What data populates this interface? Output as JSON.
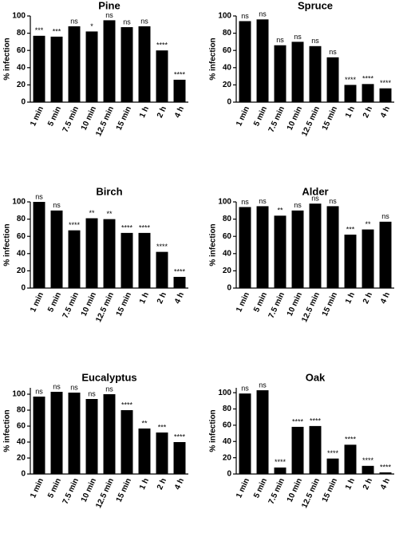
{
  "chart_data": [
    {
      "type": "bar",
      "title": "Pine",
      "ylabel": "% infection",
      "color": "#000000",
      "categories": [
        "1 min",
        "5 min",
        "7.5 min",
        "10 min",
        "12.5 min",
        "15 min",
        "1 h",
        "2 h",
        "4 h"
      ],
      "values": [
        77,
        76,
        88,
        82,
        95,
        87,
        88,
        60,
        26
      ],
      "annotations": [
        "***",
        "***",
        "ns",
        "*",
        "ns",
        "ns",
        "ns",
        "****",
        "****"
      ],
      "ylim": [
        0,
        100
      ],
      "yticks": [
        0,
        20,
        40,
        60,
        80,
        100
      ]
    },
    {
      "type": "bar",
      "title": "Spruce",
      "ylabel": "% infection",
      "color": "#000000",
      "categories": [
        "1 min",
        "5 min",
        "7.5 min",
        "10 min",
        "12.5 min",
        "15 min",
        "1 h",
        "2 h",
        "4 h"
      ],
      "values": [
        94,
        96,
        66,
        70,
        65,
        52,
        20,
        21,
        16
      ],
      "annotations": [
        "ns",
        "ns",
        "ns",
        "ns",
        "ns",
        "ns",
        "****",
        "****",
        "****"
      ],
      "ylim": [
        0,
        100
      ],
      "yticks": [
        0,
        20,
        40,
        60,
        80,
        100
      ]
    },
    {
      "type": "bar",
      "title": "Birch",
      "ylabel": "% infection",
      "color": "#000000",
      "categories": [
        "1 min",
        "5 min",
        "7.5 min",
        "10 min",
        "12.5 min",
        "15 min",
        "1 h",
        "2 h",
        "4 h"
      ],
      "values": [
        100,
        90,
        67,
        81,
        80,
        64,
        64,
        42,
        13
      ],
      "annotations": [
        "ns",
        "ns",
        "****",
        "**",
        "**",
        "****",
        "****",
        "****",
        "****"
      ],
      "ylim": [
        0,
        100
      ],
      "yticks": [
        0,
        20,
        40,
        60,
        80,
        100
      ]
    },
    {
      "type": "bar",
      "title": "Alder",
      "ylabel": "% infection",
      "color": "#000000",
      "categories": [
        "1 min",
        "5 min",
        "7.5 min",
        "10 min",
        "12.5 min",
        "15 min",
        "1 h",
        "2 h",
        "4 h"
      ],
      "values": [
        94,
        95,
        84,
        90,
        98,
        95,
        62,
        68,
        77
      ],
      "annotations": [
        "ns",
        "ns",
        "**",
        "ns",
        "ns",
        "ns",
        "***",
        "**",
        "ns"
      ],
      "ylim": [
        0,
        100
      ],
      "yticks": [
        0,
        20,
        40,
        60,
        80,
        100
      ]
    },
    {
      "type": "bar",
      "title": "Eucalyptus",
      "ylabel": "% infection",
      "color": "#000000",
      "categories": [
        "1 min",
        "5 min",
        "7.5 min",
        "10 min",
        "12.5 min",
        "15 min",
        "1 h",
        "2 h",
        "4 h"
      ],
      "values": [
        97,
        103,
        102,
        94,
        100,
        80,
        57,
        52,
        40
      ],
      "annotations": [
        "ns",
        "ns",
        "ns",
        "ns",
        "ns",
        "****",
        "**",
        "***",
        "****"
      ],
      "ylim": [
        0,
        108
      ],
      "yticks": [
        0,
        20,
        40,
        60,
        80,
        100
      ]
    },
    {
      "type": "bar",
      "title": "Oak",
      "ylabel": "% infection",
      "color": "#000000",
      "categories": [
        "1 min",
        "5 min",
        "7.5 min",
        "10 min",
        "12.5 min",
        "15 min",
        "1 h",
        "2 h",
        "4 h"
      ],
      "values": [
        99,
        103,
        8,
        58,
        59,
        19,
        36,
        10,
        2
      ],
      "annotations": [
        "ns",
        "ns",
        "****",
        "****",
        "****",
        "****",
        "****",
        "****",
        "****"
      ],
      "ylim": [
        0,
        106
      ],
      "yticks": [
        0,
        20,
        40,
        60,
        80,
        100
      ]
    }
  ]
}
